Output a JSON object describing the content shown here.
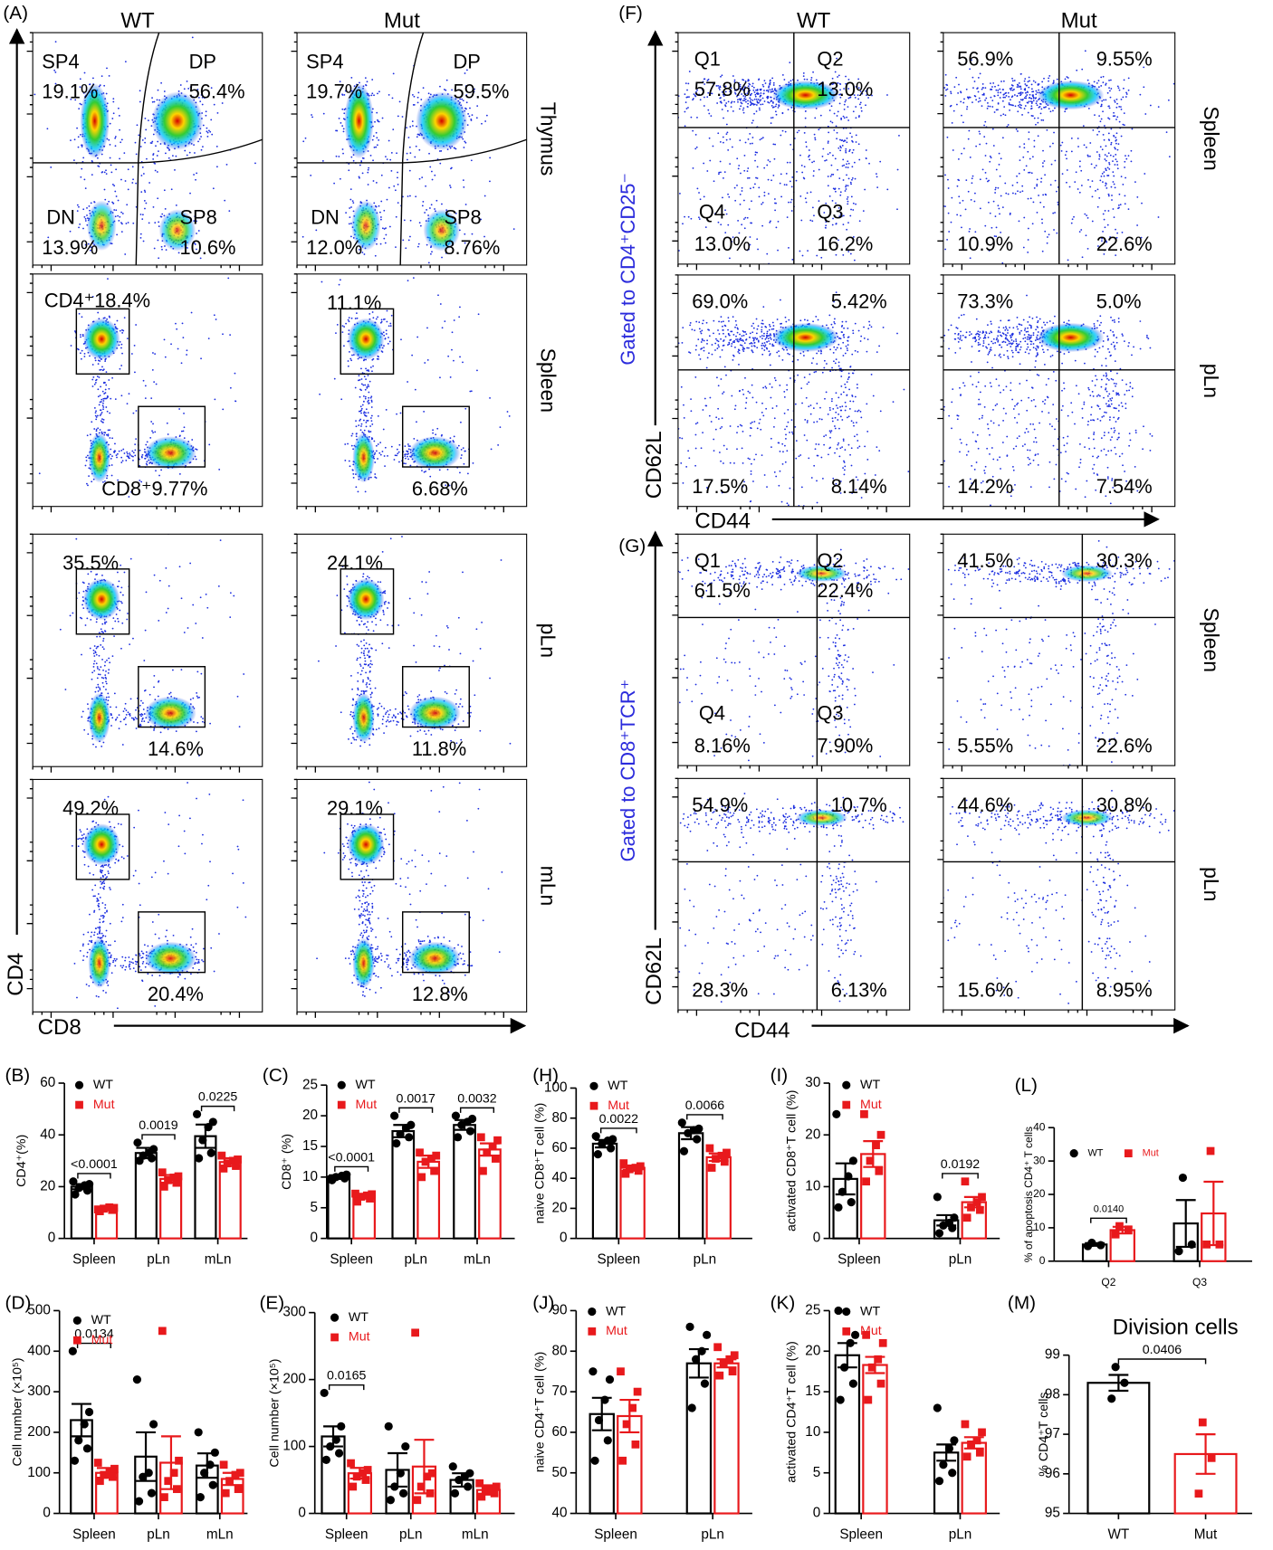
{
  "flow": [
    {
      "label": "(A)",
      "columns": [
        "WT",
        "Mut"
      ],
      "rows": [
        "Thymus",
        "Spleen",
        "pLn",
        "mLn"
      ],
      "x_axis": "CD8",
      "y_axis": "CD4",
      "plots": [
        [
          [
            "SP4",
            "19.1%",
            "DP",
            "56.4%",
            "DN",
            "13.9%",
            "SP8",
            "10.6%"
          ],
          [
            "SP4",
            "19.7%",
            "DP",
            "59.5%",
            "DN",
            "12.0%",
            "SP8",
            "8.76%"
          ]
        ],
        [
          [
            "CD4⁺18.4%",
            "CD8⁺9.77%"
          ],
          [
            "11.1%",
            "6.68%"
          ]
        ],
        [
          [
            "35.5%",
            "14.6%"
          ],
          [
            "24.1%",
            "11.8%"
          ]
        ],
        [
          [
            "49.2%",
            "20.4%"
          ],
          [
            "29.1%",
            "12.8%"
          ]
        ]
      ]
    },
    {
      "label": "(F)",
      "columns": [
        "WT",
        "Mut"
      ],
      "rows": [
        "Spleen",
        "pLn"
      ],
      "gating": "Gated to CD4⁺CD25⁻",
      "x_axis": "CD44",
      "y_axis": "CD62L",
      "plots": [
        [
          [
            "Q1",
            "57.8%",
            "Q2",
            "13.0%",
            "Q4",
            "13.0%",
            "Q3",
            "16.2%"
          ],
          [
            "56.9%",
            "9.55%",
            "10.9%",
            "22.6%"
          ]
        ],
        [
          [
            "69.0%",
            "5.42%",
            "17.5%",
            "8.14%"
          ],
          [
            "73.3%",
            "5.0%",
            "14.2%",
            "7.54%"
          ]
        ]
      ]
    },
    {
      "label": "(G)",
      "columns": [
        "WT",
        "Mut"
      ],
      "rows": [
        "Spleen",
        "pLn"
      ],
      "gating": "Gated to CD8⁺TCR⁺",
      "x_axis": "CD44",
      "y_axis": "CD62L",
      "plots": [
        [
          [
            "Q1",
            "61.5%",
            "Q2",
            "22.4%",
            "Q4",
            "8.16%",
            "Q3",
            "7.90%"
          ],
          [
            "41.5%",
            "30.3%",
            "5.55%",
            "22.6%"
          ]
        ],
        [
          [
            "54.9%",
            "10.7%",
            "28.3%",
            "6.13%"
          ],
          [
            "44.6%",
            "30.8%",
            "15.6%",
            "8.95%"
          ]
        ]
      ]
    }
  ],
  "chart_data": [
    {
      "type": "grouped_bar",
      "label": "(B)",
      "ylabel": "CD4⁺(%)",
      "categories": [
        "Spleen",
        "pLn",
        "mLn"
      ],
      "ylim": [
        0,
        60
      ],
      "yticks": [
        0,
        20,
        40,
        60
      ],
      "legend": "upper left",
      "series": [
        {
          "name": "WT",
          "color": "#000000",
          "marker": "circle",
          "values": [
            20,
            33,
            39.5
          ],
          "errors": [
            1,
            2,
            4.5
          ],
          "points": [
            [
              17,
              18.5,
              19.5,
              20.5,
              21,
              22
            ],
            [
              30,
              31,
              32,
              33,
              34.5,
              37
            ],
            [
              31,
              33,
              38,
              43,
              45,
              48
            ]
          ]
        },
        {
          "name": "Mut",
          "color": "#e8191c",
          "marker": "square",
          "values": [
            11.5,
            23,
            29.5
          ],
          "errors": [
            0.5,
            1.5,
            1.5
          ],
          "points": [
            [
              10.5,
              11,
              11.5,
              12,
              11.8,
              11.2
            ],
            [
              20,
              21.5,
              22.5,
              23.5,
              24,
              25.5
            ],
            [
              27,
              28,
              29,
              30,
              30.5,
              32
            ]
          ]
        }
      ],
      "p_values": [
        "<0.0001",
        "0.0019",
        "0.0225"
      ]
    },
    {
      "type": "grouped_bar",
      "label": "(C)",
      "ylabel": "CD8⁺ (%)",
      "categories": [
        "Spleen",
        "pLn",
        "mLn"
      ],
      "ylim": [
        0,
        25
      ],
      "yticks": [
        0,
        5,
        10,
        15,
        20,
        25
      ],
      "legend": "upper left",
      "series": [
        {
          "name": "WT",
          "color": "#000000",
          "marker": "circle",
          "values": [
            10,
            17.5,
            18.5
          ],
          "errors": [
            0.3,
            1,
            0.8
          ],
          "points": [
            [
              9.5,
              9.8,
              10,
              10.2,
              10.4,
              9.7
            ],
            [
              15.5,
              16.5,
              17,
              18,
              18.5,
              20
            ],
            [
              16.5,
              17.5,
              18.5,
              19,
              19.5,
              20
            ]
          ]
        },
        {
          "name": "Mut",
          "color": "#e8191c",
          "marker": "square",
          "values": [
            6.8,
            12.5,
            14.5
          ],
          "errors": [
            0.3,
            1,
            1
          ],
          "points": [
            [
              6,
              6.5,
              6.8,
              7,
              7.2,
              7.3
            ],
            [
              10,
              11,
              12.5,
              13,
              13.5,
              14
            ],
            [
              11,
              13,
              14,
              15,
              16,
              16.5
            ]
          ]
        }
      ],
      "p_values": [
        "<0.0001",
        "0.0017",
        "0.0032"
      ]
    },
    {
      "type": "grouped_bar",
      "label": "(H)",
      "ylabel": "naive CD8⁺T cell (%)",
      "categories": [
        "Spleen",
        "pLn"
      ],
      "ylim": [
        0,
        100
      ],
      "yticks": [
        0,
        20,
        40,
        60,
        80,
        100
      ],
      "legend": "upper left",
      "series": [
        {
          "name": "WT",
          "color": "#000000",
          "marker": "circle",
          "values": [
            63,
            70
          ],
          "errors": [
            2.5,
            4
          ],
          "points": [
            [
              56,
              60,
              63,
              65,
              66,
              68
            ],
            [
              58,
              66,
              70,
              72,
              73,
              77
            ]
          ]
        },
        {
          "name": "Mut",
          "color": "#e8191c",
          "marker": "square",
          "values": [
            47,
            54
          ],
          "errors": [
            1.5,
            2.5
          ],
          "points": [
            [
              43,
              45,
              46,
              47,
              48,
              50
            ],
            [
              47,
              51,
              53,
              55,
              57,
              60
            ]
          ]
        }
      ],
      "p_values": [
        "0.0022",
        "0.0066"
      ]
    },
    {
      "type": "grouped_bar",
      "label": "(I)",
      "ylabel": "activated CD8⁺T cell (%)",
      "categories": [
        "Spleen",
        "pLn"
      ],
      "ylim": [
        0,
        30
      ],
      "yticks": [
        0,
        10,
        20,
        30
      ],
      "legend": "upper left",
      "series": [
        {
          "name": "WT",
          "color": "#000000",
          "marker": "circle",
          "values": [
            11.5,
            3.5
          ],
          "errors": [
            3,
            1
          ],
          "points": [
            [
              6,
              7,
              9,
              12,
              15,
              24
            ],
            [
              1,
              2,
              2.5,
              3,
              4,
              8
            ]
          ]
        },
        {
          "name": "Mut",
          "color": "#e8191c",
          "marker": "square",
          "values": [
            16.3,
            7
          ],
          "errors": [
            2.5,
            1
          ],
          "points": [
            [
              11,
              13,
              15,
              18,
              20,
              24
            ],
            [
              4,
              5.5,
              6,
              7,
              8,
              11
            ]
          ]
        }
      ],
      "p_values": [
        null,
        "0.0192"
      ]
    },
    {
      "type": "grouped_bar",
      "label": "(L)",
      "ylabel": "% of apoptosis CD4⁺ T cells",
      "categories": [
        "Q2",
        "Q3"
      ],
      "ylim": [
        0,
        40
      ],
      "yticks": [
        0,
        10,
        20,
        30,
        40
      ],
      "legend": "upper left",
      "series": [
        {
          "name": "WT",
          "color": "#000000",
          "marker": "circle",
          "values": [
            5,
            11.3
          ],
          "errors": [
            0.4,
            7
          ],
          "points": [
            [
              4.5,
              4.8,
              5.5
            ],
            [
              3,
              5,
              25
            ]
          ]
        },
        {
          "name": "Mut",
          "color": "#e8191c",
          "marker": "square",
          "values": [
            9.3,
            14.3
          ],
          "errors": [
            1,
            9.5
          ],
          "points": [
            [
              8,
              9.5,
              10.5
            ],
            [
              5,
              5,
              33
            ]
          ]
        }
      ],
      "p_values": [
        "0.0140",
        null
      ]
    },
    {
      "type": "grouped_bar",
      "label": "(D)",
      "ylabel": "Cell number (×10⁵)",
      "categories": [
        "Spleen",
        "pLn",
        "mLn"
      ],
      "ylim": [
        0,
        500
      ],
      "yticks": [
        0,
        100,
        200,
        300,
        400,
        500
      ],
      "legend": "upper left",
      "series": [
        {
          "name": "WT",
          "color": "#000000",
          "marker": "circle",
          "values": [
            230,
            140,
            118
          ],
          "errors": [
            40,
            60,
            30
          ],
          "points": [
            [
              130,
              160,
              180,
              220,
              250,
              400
            ],
            [
              30,
              50,
              90,
              100,
              220,
              330
            ],
            [
              40,
              70,
              100,
              120,
              150,
              200
            ]
          ]
        },
        {
          "name": "Mut",
          "color": "#e8191c",
          "marker": "square",
          "values": [
            100,
            125,
            85
          ],
          "errors": [
            12,
            65,
            15
          ],
          "points": [
            [
              80,
              90,
              95,
              100,
              110,
              125
            ],
            [
              40,
              60,
              80,
              100,
              130,
              450
            ],
            [
              50,
              60,
              80,
              95,
              100,
              120
            ]
          ]
        }
      ],
      "p_values": [
        "0.0134",
        null,
        null
      ]
    },
    {
      "type": "grouped_bar",
      "label": "(E)",
      "ylabel": "Cell number (×10⁵)",
      "categories": [
        "Spleen",
        "pLn",
        "mLn"
      ],
      "ylim": [
        0,
        300
      ],
      "yticks": [
        0,
        100,
        200,
        300
      ],
      "legend": "upper left",
      "series": [
        {
          "name": "WT",
          "color": "#000000",
          "marker": "circle",
          "values": [
            115,
            65,
            50
          ],
          "errors": [
            15,
            25,
            10
          ],
          "points": [
            [
              80,
              90,
              100,
              110,
              130,
              180
            ],
            [
              20,
              30,
              40,
              60,
              100,
              130
            ],
            [
              30,
              40,
              50,
              55,
              60,
              70
            ]
          ]
        },
        {
          "name": "Mut",
          "color": "#e8191c",
          "marker": "square",
          "values": [
            60,
            70,
            35
          ],
          "errors": [
            8,
            40,
            7
          ],
          "points": [
            [
              40,
              50,
              55,
              60,
              65,
              75
            ],
            [
              20,
              30,
              40,
              55,
              60,
              270
            ],
            [
              25,
              30,
              35,
              35,
              40,
              45
            ]
          ]
        }
      ],
      "p_values": [
        "0.0165",
        null,
        null
      ]
    },
    {
      "type": "grouped_bar",
      "label": "(J)",
      "ylabel": "naive CD4⁺T cell (%)",
      "categories": [
        "Spleen",
        "pLn"
      ],
      "ylim": [
        40,
        90
      ],
      "yticks": [
        40,
        50,
        60,
        70,
        80,
        90
      ],
      "legend": "upper left",
      "series": [
        {
          "name": "WT",
          "color": "#000000",
          "marker": "circle",
          "values": [
            64.5,
            77
          ],
          "errors": [
            4,
            3.5
          ],
          "points": [
            [
              53,
              58,
              63,
              68,
              73,
              75
            ],
            [
              66,
              72,
              78,
              80,
              84,
              86
            ]
          ]
        },
        {
          "name": "Mut",
          "color": "#e8191c",
          "marker": "square",
          "values": [
            64,
            77
          ],
          "errors": [
            4,
            1
          ],
          "points": [
            [
              53,
              57,
              62,
              66,
              70,
              75
            ],
            [
              74,
              75,
              77,
              78,
              79,
              81
            ]
          ]
        }
      ],
      "p_values": [
        null,
        null
      ]
    },
    {
      "type": "grouped_bar",
      "label": "(K)",
      "ylabel": "activated CD4⁺T cell (%)",
      "categories": [
        "Spleen",
        "pLn"
      ],
      "ylim": [
        0,
        25
      ],
      "yticks": [
        0,
        5,
        10,
        15,
        20,
        25
      ],
      "legend": "upper left",
      "series": [
        {
          "name": "WT",
          "color": "#000000",
          "marker": "circle",
          "values": [
            19.5,
            7.5
          ],
          "errors": [
            1.5,
            1
          ],
          "points": [
            [
              14,
              16,
              18,
              21,
              22,
              25
            ],
            [
              4,
              5,
              6,
              8,
              9,
              13
            ]
          ]
        },
        {
          "name": "Mut",
          "color": "#e8191c",
          "marker": "square",
          "values": [
            18.3,
            8.7
          ],
          "errors": [
            1,
            0.7
          ],
          "points": [
            [
              14,
              16,
              18,
              19,
              21,
              22
            ],
            [
              7,
              7.5,
              8.5,
              9,
              10,
              11
            ]
          ]
        }
      ],
      "p_values": [
        null,
        null
      ]
    },
    {
      "type": "bar",
      "label": "(M)",
      "title": "Division cells",
      "ylabel": "% CD4⁺T cells",
      "categories": [
        "WT",
        "Mut"
      ],
      "ylim": [
        95,
        99
      ],
      "yticks": [
        95,
        96,
        97,
        98,
        99
      ],
      "values": [
        98.3,
        96.5
      ],
      "errors": [
        0.2,
        0.5
      ],
      "colors": [
        "#000000",
        "#e8191c"
      ],
      "markers": [
        "circle",
        "square"
      ],
      "points": [
        [
          97.9,
          98.3,
          98.7
        ],
        [
          95.5,
          96.4,
          97.3
        ]
      ],
      "comparison": "0.0406"
    }
  ]
}
